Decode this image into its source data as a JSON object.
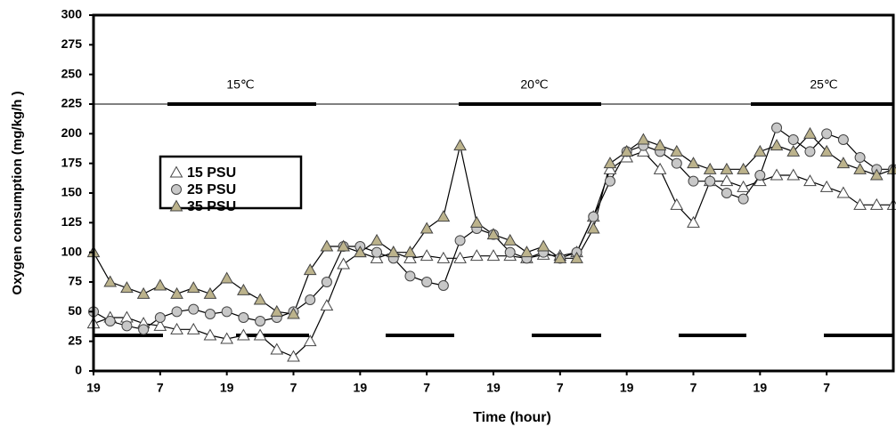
{
  "chart_data": {
    "type": "line",
    "y_label": "Oxygen consumption (mg/kg/h )",
    "x_label": "Time (hour)",
    "annotations": [
      "15℃",
      "20℃",
      "25℃"
    ],
    "ylim": [
      0,
      300
    ],
    "yticks": [
      0,
      25,
      50,
      75,
      100,
      125,
      150,
      175,
      200,
      225,
      250,
      275,
      300
    ],
    "xlim": [
      0,
      144
    ],
    "xticks": [
      {
        "value": 0,
        "label": "19"
      },
      {
        "value": 12,
        "label": "7"
      },
      {
        "value": 24,
        "label": "19"
      },
      {
        "value": 36,
        "label": "7"
      },
      {
        "value": 48,
        "label": "19"
      },
      {
        "value": 60,
        "label": "7"
      },
      {
        "value": 72,
        "label": "19"
      },
      {
        "value": 84,
        "label": "7"
      },
      {
        "value": 96,
        "label": "19"
      },
      {
        "value": 108,
        "label": "7"
      },
      {
        "value": 120,
        "label": "19"
      },
      {
        "value": 132,
        "label": "7"
      }
    ],
    "x": [
      0,
      3,
      6,
      9,
      12,
      15,
      18,
      21,
      24,
      27,
      30,
      33,
      36,
      39,
      42,
      45,
      48,
      51,
      54,
      57,
      60,
      63,
      66,
      69,
      72,
      75,
      78,
      81,
      84,
      87,
      90,
      93,
      96,
      99,
      102,
      105,
      108,
      111,
      114,
      117,
      120,
      123,
      126,
      129,
      132,
      135,
      138,
      141,
      144
    ],
    "series": [
      {
        "name": "15 PSU",
        "color": "#ffffff",
        "marker": "triangle",
        "values": [
          40,
          45,
          45,
          40,
          38,
          35,
          35,
          30,
          27,
          30,
          30,
          18,
          12,
          25,
          55,
          90,
          100,
          95,
          100,
          95,
          97,
          95,
          95,
          97,
          97,
          97,
          95,
          98,
          97,
          100,
          130,
          170,
          180,
          185,
          170,
          140,
          125,
          160,
          160,
          155,
          160,
          165,
          165,
          160,
          155,
          150,
          140,
          140,
          140
        ]
      },
      {
        "name": "25 PSU",
        "color": "#c8c8c8",
        "marker": "circle",
        "values": [
          50,
          42,
          38,
          35,
          45,
          50,
          52,
          48,
          50,
          45,
          42,
          45,
          50,
          60,
          75,
          105,
          105,
          100,
          95,
          80,
          75,
          72,
          110,
          120,
          115,
          100,
          95,
          100,
          95,
          100,
          130,
          160,
          185,
          190,
          185,
          175,
          160,
          160,
          150,
          145,
          165,
          205,
          195,
          185,
          200,
          195,
          180,
          170,
          170
        ]
      },
      {
        "name": "35 PSU",
        "color": "#bcb38c",
        "marker": "triangle",
        "values": [
          100,
          75,
          70,
          65,
          72,
          65,
          70,
          65,
          78,
          68,
          60,
          50,
          48,
          85,
          105,
          105,
          100,
          110,
          100,
          100,
          120,
          130,
          190,
          125,
          115,
          110,
          100,
          105,
          95,
          95,
          120,
          175,
          185,
          195,
          190,
          185,
          175,
          170,
          170,
          170,
          185,
          190,
          185,
          200,
          185,
          175,
          170,
          165,
          170
        ]
      }
    ]
  }
}
